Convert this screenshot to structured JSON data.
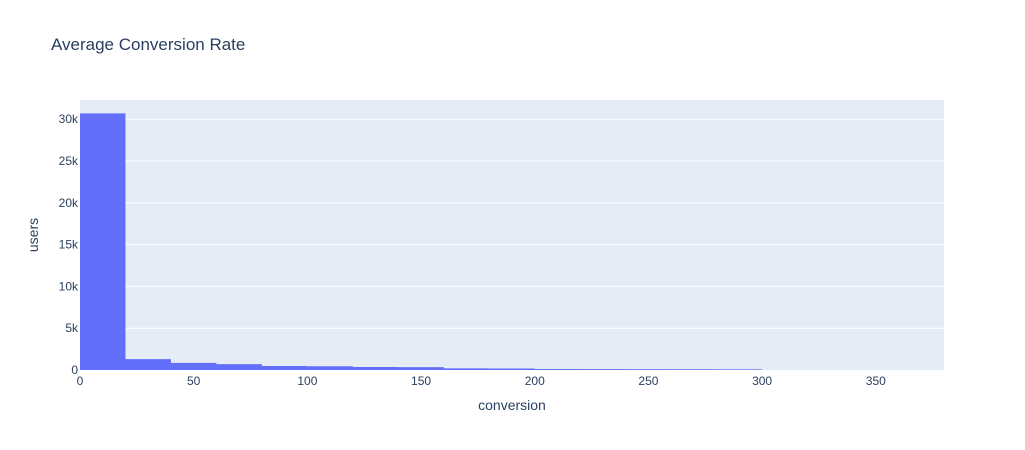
{
  "chart_data": {
    "type": "bar",
    "title": "Average Conversion Rate",
    "xlabel": "conversion",
    "ylabel": "users",
    "bin_width": 20,
    "bins": [
      {
        "x0": 0,
        "x1": 20,
        "value": 30700
      },
      {
        "x0": 20,
        "x1": 40,
        "value": 1300
      },
      {
        "x0": 40,
        "x1": 60,
        "value": 850
      },
      {
        "x0": 60,
        "x1": 80,
        "value": 700
      },
      {
        "x0": 80,
        "x1": 100,
        "value": 480
      },
      {
        "x0": 100,
        "x1": 120,
        "value": 450
      },
      {
        "x0": 120,
        "x1": 140,
        "value": 360
      },
      {
        "x0": 140,
        "x1": 160,
        "value": 340
      },
      {
        "x0": 160,
        "x1": 180,
        "value": 200
      },
      {
        "x0": 180,
        "x1": 200,
        "value": 180
      },
      {
        "x0": 200,
        "x1": 220,
        "value": 120
      },
      {
        "x0": 220,
        "x1": 240,
        "value": 110
      },
      {
        "x0": 240,
        "x1": 260,
        "value": 100
      },
      {
        "x0": 260,
        "x1": 280,
        "value": 90
      },
      {
        "x0": 280,
        "x1": 300,
        "value": 80
      }
    ],
    "xlim": [
      0,
      380
    ],
    "ylim": [
      0,
      32300
    ],
    "x_ticks": [
      0,
      50,
      100,
      150,
      200,
      250,
      300,
      350
    ],
    "y_ticks": [
      {
        "value": 0,
        "label": "0"
      },
      {
        "value": 5000,
        "label": "5k"
      },
      {
        "value": 10000,
        "label": "10k"
      },
      {
        "value": 15000,
        "label": "15k"
      },
      {
        "value": 20000,
        "label": "20k"
      },
      {
        "value": 25000,
        "label": "25k"
      },
      {
        "value": 30000,
        "label": "30k"
      }
    ],
    "colors": {
      "bar": "#636efa",
      "plot_bg": "#e5ecf6",
      "grid": "#ffffff",
      "text": "#2a3f5f"
    },
    "grid": true
  }
}
